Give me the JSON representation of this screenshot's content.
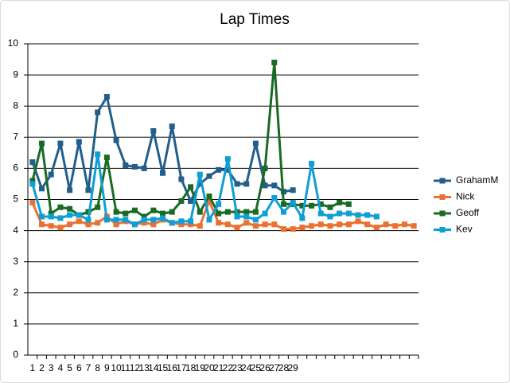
{
  "chart_data": {
    "type": "line",
    "title": "Lap Times",
    "categories": [
      "1",
      "2",
      "3",
      "4",
      "5",
      "6",
      "7",
      "8",
      "9",
      "10",
      "11",
      "12",
      "13",
      "14",
      "15",
      "16",
      "17",
      "18",
      "19",
      "20",
      "21",
      "22",
      "23",
      "24",
      "25",
      "26",
      "27",
      "28",
      "29",
      null,
      null,
      null,
      null,
      null,
      null,
      null,
      null,
      null,
      null,
      null,
      null,
      null
    ],
    "series": [
      {
        "name": "GrahamM",
        "color": "#215f8a",
        "values": [
          6.2,
          5.35,
          5.8,
          6.8,
          5.3,
          6.85,
          5.3,
          7.8,
          8.3,
          6.9,
          6.1,
          6.05,
          6.0,
          7.2,
          5.85,
          7.35,
          5.65,
          4.95,
          5.5,
          5.75,
          5.95,
          5.95,
          5.5,
          5.5,
          6.8,
          5.45,
          5.45,
          5.25,
          5.3,
          null,
          null,
          null,
          null,
          null,
          null,
          null,
          null,
          null,
          null,
          null,
          null,
          null
        ]
      },
      {
        "name": "Nick",
        "color": "#e97132",
        "values": [
          4.9,
          4.2,
          4.15,
          4.1,
          4.2,
          4.3,
          4.2,
          4.25,
          4.45,
          4.2,
          4.3,
          4.2,
          4.25,
          4.2,
          4.35,
          4.25,
          4.2,
          4.2,
          4.15,
          4.95,
          4.25,
          4.2,
          4.1,
          4.25,
          4.15,
          4.2,
          4.2,
          4.05,
          4.05,
          4.1,
          4.15,
          4.2,
          4.15,
          4.2,
          4.2,
          4.3,
          4.2,
          4.1,
          4.2,
          4.15,
          4.2,
          4.15
        ]
      },
      {
        "name": "Geoff",
        "color": "#196b24",
        "values": [
          5.6,
          6.8,
          4.55,
          4.75,
          4.7,
          4.5,
          4.6,
          4.75,
          6.35,
          4.6,
          4.55,
          4.65,
          4.45,
          4.65,
          4.55,
          4.6,
          4.95,
          5.4,
          4.6,
          5.1,
          4.55,
          4.6,
          4.6,
          4.6,
          4.6,
          6.0,
          9.4,
          4.85,
          4.85,
          4.8,
          4.8,
          4.85,
          4.75,
          4.9,
          4.85,
          null,
          null,
          null,
          null,
          null,
          null,
          null
        ]
      },
      {
        "name": "Kev",
        "color": "#0f9ed5",
        "values": [
          5.5,
          4.45,
          4.45,
          4.4,
          4.5,
          4.5,
          4.35,
          6.45,
          4.35,
          4.35,
          4.35,
          4.2,
          4.35,
          4.35,
          4.4,
          4.25,
          4.3,
          4.3,
          5.8,
          4.35,
          4.85,
          6.3,
          4.45,
          4.45,
          4.35,
          4.55,
          5.05,
          4.6,
          4.9,
          4.4,
          6.15,
          4.55,
          4.45,
          4.55,
          4.55,
          4.5,
          4.5,
          4.45,
          null,
          null,
          null,
          null
        ]
      }
    ],
    "ylim": [
      0,
      10
    ],
    "yticks": [
      0,
      1,
      2,
      3,
      4,
      5,
      6,
      7,
      8,
      9,
      10
    ],
    "grid": true,
    "legend": "right"
  }
}
